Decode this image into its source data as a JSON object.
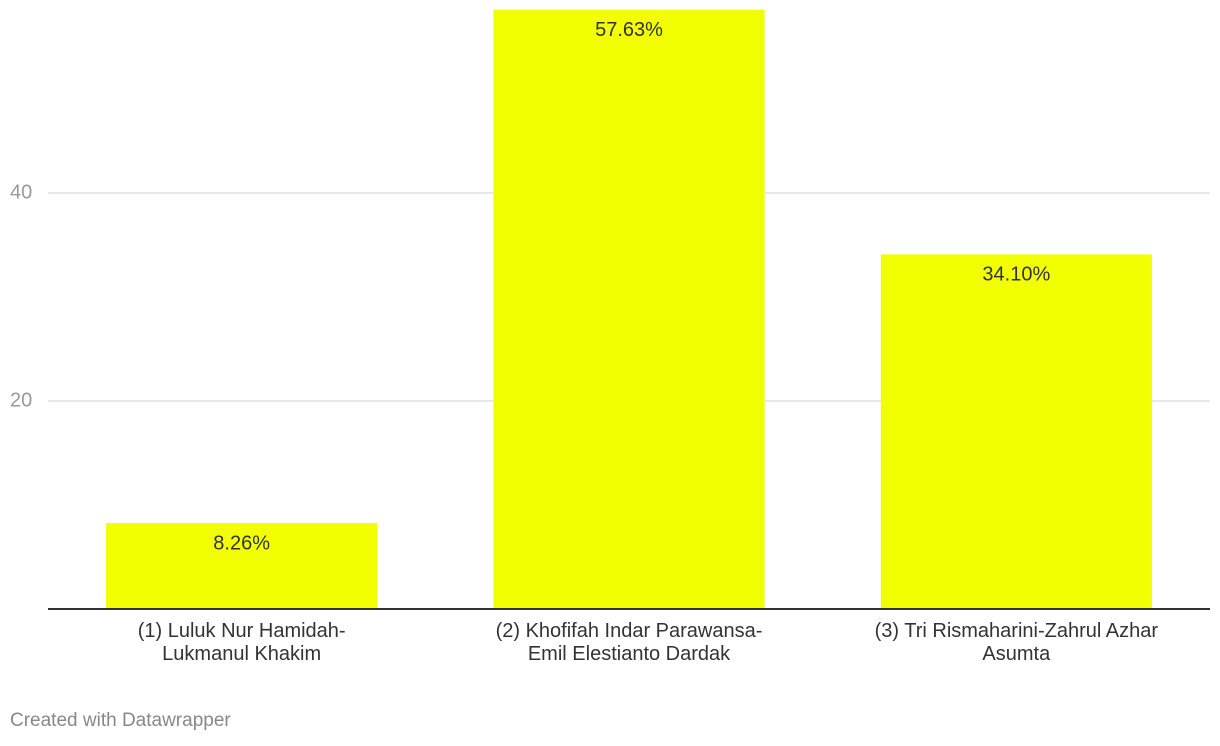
{
  "chart_data": {
    "type": "bar",
    "categories": [
      "(1) Luluk Nur Hamidah-\nLukmanul Khakim",
      "(2) Khofifah Indar Parawansa-\nEmil Elestianto Dardak",
      "(3) Tri Rismaharini-Zahrul Azhar\nAsumta"
    ],
    "values": [
      8.26,
      57.63,
      34.1
    ],
    "value_labels": [
      "8.26%",
      "57.63%",
      "34.10%"
    ],
    "color": "#f2ff00",
    "ylim": [
      0,
      57.6
    ],
    "yticks": [
      20,
      40
    ],
    "grid": true,
    "footer": "Created with Datawrapper"
  }
}
